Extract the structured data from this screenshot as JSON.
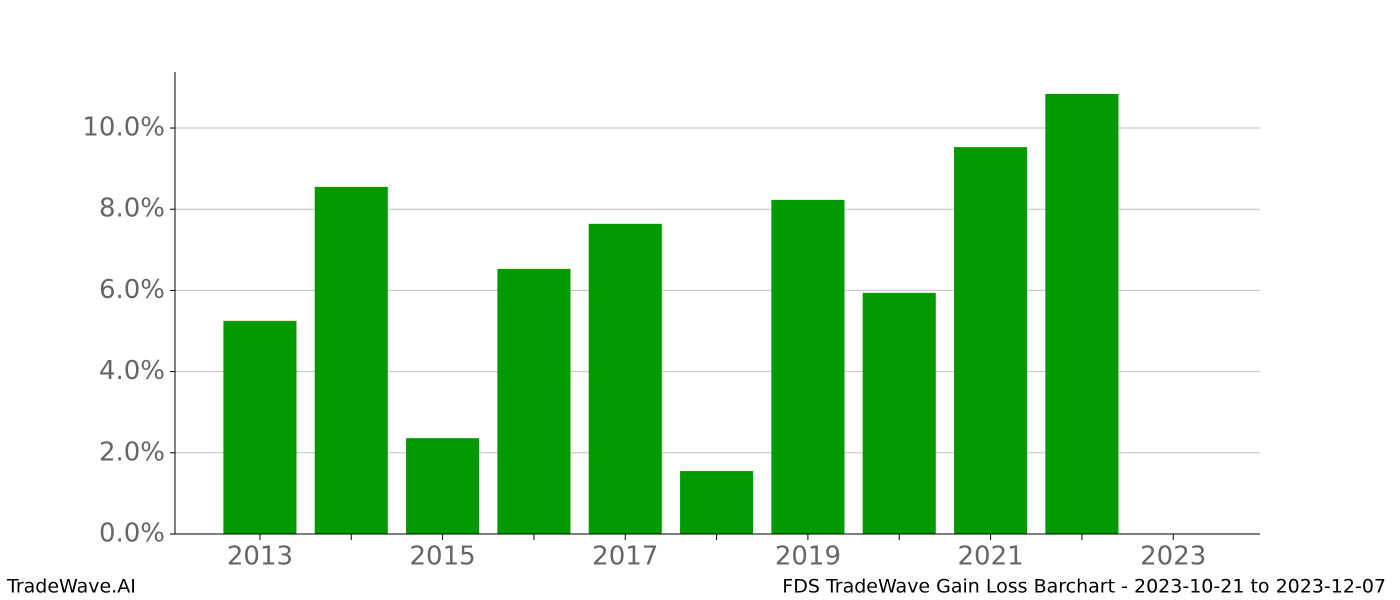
{
  "chart_data": {
    "type": "bar",
    "x": [
      2013,
      2014,
      2015,
      2016,
      2017,
      2018,
      2019,
      2020,
      2021,
      2022
    ],
    "values": [
      5.25,
      8.55,
      2.36,
      6.53,
      7.64,
      1.55,
      8.23,
      5.94,
      9.53,
      10.84
    ],
    "color": "#009900",
    "bar_width": 0.8,
    "xlim": [
      2012.07,
      2023.95
    ],
    "xticks": [
      2013,
      2015,
      2017,
      2019,
      2021,
      2023
    ],
    "xminor_ticks": [
      2014,
      2016,
      2018,
      2020,
      2022
    ],
    "ylim": [
      0,
      11.38
    ],
    "yticks": [
      {
        "value": 0,
        "label": "0.0%"
      },
      {
        "value": 2,
        "label": "2.0%"
      },
      {
        "value": 4,
        "label": "4.0%"
      },
      {
        "value": 6,
        "label": "6.0%"
      },
      {
        "value": 8,
        "label": "8.0%"
      },
      {
        "value": 10,
        "label": "10.0%"
      }
    ],
    "grid": true
  },
  "footer": {
    "left": "TradeWave.AI",
    "right": "FDS TradeWave Gain Loss Barchart - 2023-10-21 to 2023-12-07"
  }
}
